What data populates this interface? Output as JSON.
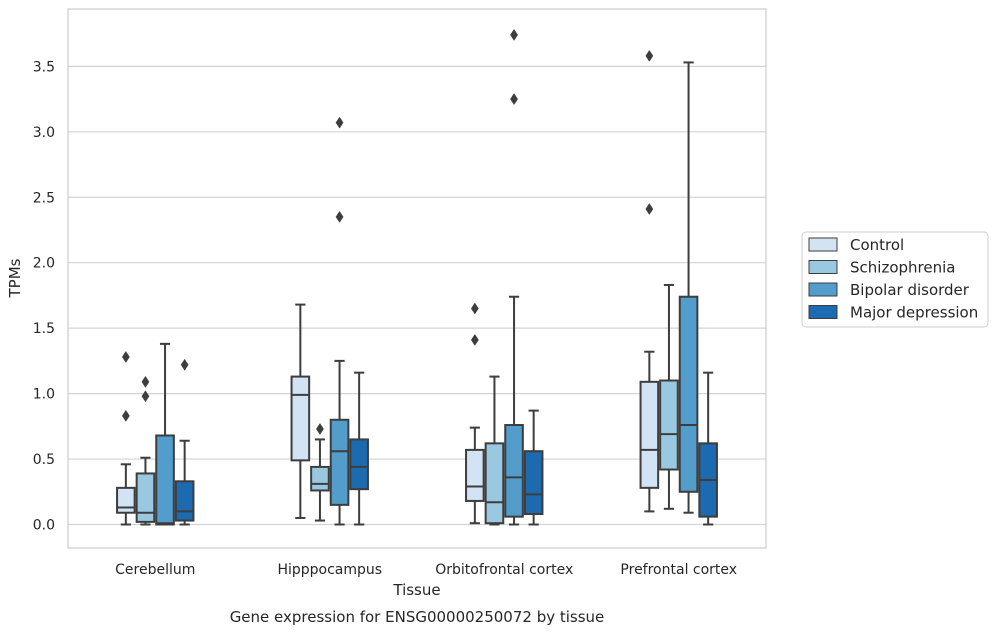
{
  "chart_data": {
    "type": "box",
    "title": "",
    "caption": "Gene expression for ENSG00000250072 by tissue",
    "xlabel": "Tissue",
    "ylabel": "TPMs",
    "ylim": [
      -0.18,
      3.93
    ],
    "yticks": [
      0.0,
      0.5,
      1.0,
      1.5,
      2.0,
      2.5,
      3.0,
      3.5
    ],
    "ytick_labels": [
      "0.0",
      "0.5",
      "1.0",
      "1.5",
      "2.0",
      "2.5",
      "3.0",
      "3.5"
    ],
    "grid": "horizontal",
    "legend_position": "right",
    "categories": [
      "Cerebellum",
      "Hipppocampus",
      "Orbitofrontal cortex",
      "Prefrontal cortex"
    ],
    "series": [
      {
        "name": "Control",
        "color": "#d2e3f3",
        "boxes": [
          {
            "whislo": 0.0,
            "q1": 0.09,
            "med": 0.13,
            "q3": 0.28,
            "whishi": 0.46,
            "fliers": [
              0.83,
              1.28
            ]
          },
          {
            "whislo": 0.05,
            "q1": 0.49,
            "med": 0.99,
            "q3": 1.13,
            "whishi": 1.68,
            "fliers": []
          },
          {
            "whislo": 0.01,
            "q1": 0.18,
            "med": 0.29,
            "q3": 0.57,
            "whishi": 0.74,
            "fliers": [
              1.41,
              1.65
            ]
          },
          {
            "whislo": 0.1,
            "q1": 0.28,
            "med": 0.57,
            "q3": 1.09,
            "whishi": 1.32,
            "fliers": [
              2.41,
              3.58
            ]
          }
        ]
      },
      {
        "name": "Schizophrenia",
        "color": "#9ac8e0",
        "boxes": [
          {
            "whislo": 0.0,
            "q1": 0.02,
            "med": 0.09,
            "q3": 0.39,
            "whishi": 0.51,
            "fliers": [
              0.98,
              1.09
            ]
          },
          {
            "whislo": 0.03,
            "q1": 0.26,
            "med": 0.31,
            "q3": 0.44,
            "whishi": 0.65,
            "fliers": [
              0.73
            ]
          },
          {
            "whislo": 0.0,
            "q1": 0.01,
            "med": 0.17,
            "q3": 0.62,
            "whishi": 1.13,
            "fliers": []
          },
          {
            "whislo": 0.12,
            "q1": 0.42,
            "med": 0.69,
            "q3": 1.1,
            "whishi": 1.83,
            "fliers": []
          }
        ]
      },
      {
        "name": "Bipolar disorder",
        "color": "#529dcc",
        "boxes": [
          {
            "whislo": 0.0,
            "q1": 0.0,
            "med": 0.01,
            "q3": 0.68,
            "whishi": 1.38,
            "fliers": []
          },
          {
            "whislo": 0.0,
            "q1": 0.15,
            "med": 0.56,
            "q3": 0.8,
            "whishi": 1.25,
            "fliers": [
              2.35,
              3.07
            ]
          },
          {
            "whislo": 0.0,
            "q1": 0.06,
            "med": 0.36,
            "q3": 0.76,
            "whishi": 1.74,
            "fliers": [
              3.25,
              3.74
            ]
          },
          {
            "whislo": 0.09,
            "q1": 0.25,
            "med": 0.76,
            "q3": 1.74,
            "whishi": 3.53,
            "fliers": []
          }
        ]
      },
      {
        "name": "Major depression",
        "color": "#1c6aaf",
        "boxes": [
          {
            "whislo": 0.0,
            "q1": 0.03,
            "med": 0.1,
            "q3": 0.33,
            "whishi": 0.64,
            "fliers": [
              1.22
            ]
          },
          {
            "whislo": 0.0,
            "q1": 0.27,
            "med": 0.44,
            "q3": 0.65,
            "whishi": 1.16,
            "fliers": []
          },
          {
            "whislo": 0.0,
            "q1": 0.08,
            "med": 0.23,
            "q3": 0.56,
            "whishi": 0.87,
            "fliers": []
          },
          {
            "whislo": 0.0,
            "q1": 0.06,
            "med": 0.34,
            "q3": 0.62,
            "whishi": 1.16,
            "fliers": []
          }
        ]
      }
    ]
  }
}
